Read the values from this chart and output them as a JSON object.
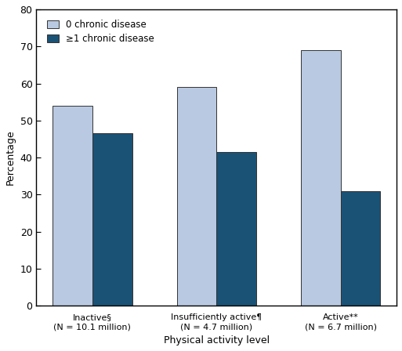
{
  "categories": [
    "Inactive§\n(N = 10.1 million)",
    "Insufficiently active¶\n(N = 4.7 million)",
    "Active**\n(N = 6.7 million)"
  ],
  "values_0_chronic": [
    54.0,
    59.0,
    69.0
  ],
  "values_1plus_chronic": [
    46.5,
    41.5,
    31.0
  ],
  "color_0_chronic": "#b8c9e1",
  "color_1plus_chronic": "#1a5276",
  "legend_labels": [
    "0 chronic disease",
    "≥1 chronic disease"
  ],
  "ylabel": "Percentage",
  "xlabel": "Physical activity level",
  "ylim": [
    0,
    80
  ],
  "yticks": [
    0,
    10,
    20,
    30,
    40,
    50,
    60,
    70,
    80
  ],
  "bar_width": 0.32,
  "figsize": [
    5.13,
    4.48
  ],
  "dpi": 100
}
